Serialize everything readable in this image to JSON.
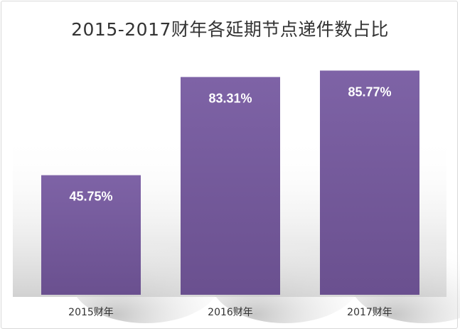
{
  "chart_data": {
    "type": "bar",
    "title": "2015-2017财年各延期节点递件数占比",
    "categories": [
      "2015财年",
      "2016财年",
      "2017财年"
    ],
    "values": [
      45.75,
      83.31,
      85.77
    ],
    "data_labels": [
      "45.75%",
      "83.31%",
      "85.77%"
    ],
    "unit": "%",
    "ylim": [
      0,
      100
    ],
    "grid": false,
    "legend": "none",
    "bar_color": "#7a5fa0"
  }
}
